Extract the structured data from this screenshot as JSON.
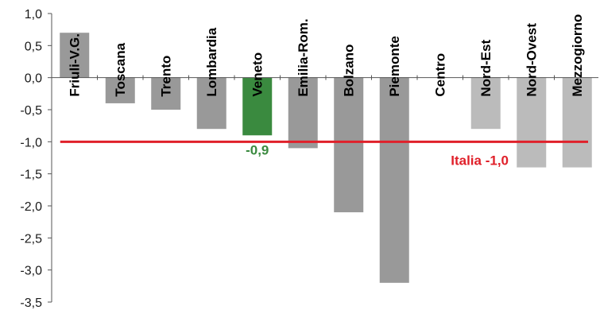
{
  "chart_data": {
    "type": "bar",
    "categories": [
      "Friuli-V.G.",
      "Toscana",
      "Trento",
      "Lombardia",
      "Veneto",
      "Emilia-Rom.",
      "Bolzano",
      "Piemonte",
      "Centro",
      "Nord-Est",
      "Nord-Ovest",
      "Mezzogiorno"
    ],
    "values": [
      0.7,
      -0.4,
      -0.5,
      -0.8,
      -0.9,
      -1.1,
      -2.1,
      -3.2,
      0.0,
      -0.8,
      -1.4,
      -1.4
    ],
    "bar_colors": [
      "#999999",
      "#999999",
      "#999999",
      "#999999",
      "#3a8a3f",
      "#999999",
      "#999999",
      "#999999",
      "#999999",
      "#bbbbbb",
      "#bbbbbb",
      "#bbbbbb"
    ],
    "highlight": {
      "category": "Veneto",
      "label": "-0,9",
      "color": "#3a8a3f"
    },
    "reference_line": {
      "value": -1.0,
      "label": "Italia -1,0",
      "color": "#e0202a"
    },
    "yticks": [
      1.0,
      0.5,
      0.0,
      -0.5,
      -1.0,
      -1.5,
      -2.0,
      -2.5,
      -3.0,
      -3.5
    ],
    "ytick_labels": [
      "1,0",
      "0,5",
      "0,0",
      "-0,5",
      "-1,0",
      "-1,5",
      "-2,0",
      "-2,5",
      "-3,0",
      "-3,5"
    ],
    "ylim": [
      -3.5,
      1.0
    ],
    "title": "",
    "xlabel": "",
    "ylabel": "",
    "grid": false,
    "legend": "none"
  }
}
